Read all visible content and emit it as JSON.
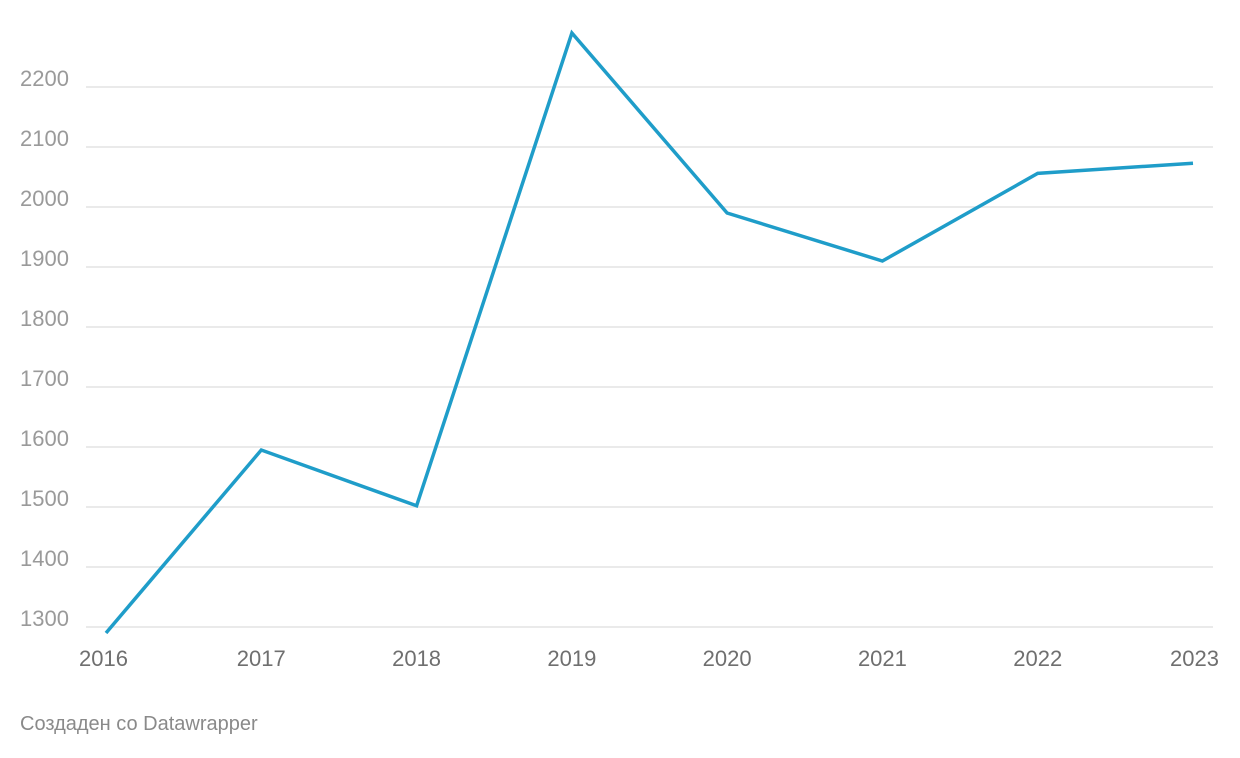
{
  "chart_data": {
    "type": "line",
    "title": "",
    "xlabel": "",
    "ylabel": "",
    "x": [
      "2016",
      "2017",
      "2018",
      "2019",
      "2020",
      "2021",
      "2022",
      "2023"
    ],
    "series": [
      {
        "values": [
          1290,
          1595,
          1502,
          2290,
          1990,
          1910,
          2056,
          2073
        ],
        "color": "#1f9dc9"
      }
    ],
    "ylim": [
      1300,
      2200
    ],
    "yticks": [
      1300,
      1400,
      1500,
      1600,
      1700,
      1800,
      1900,
      2000,
      2100,
      2200
    ],
    "grid": true,
    "legend": "none"
  },
  "footer": {
    "credit": "Создаден со Datawrapper"
  }
}
